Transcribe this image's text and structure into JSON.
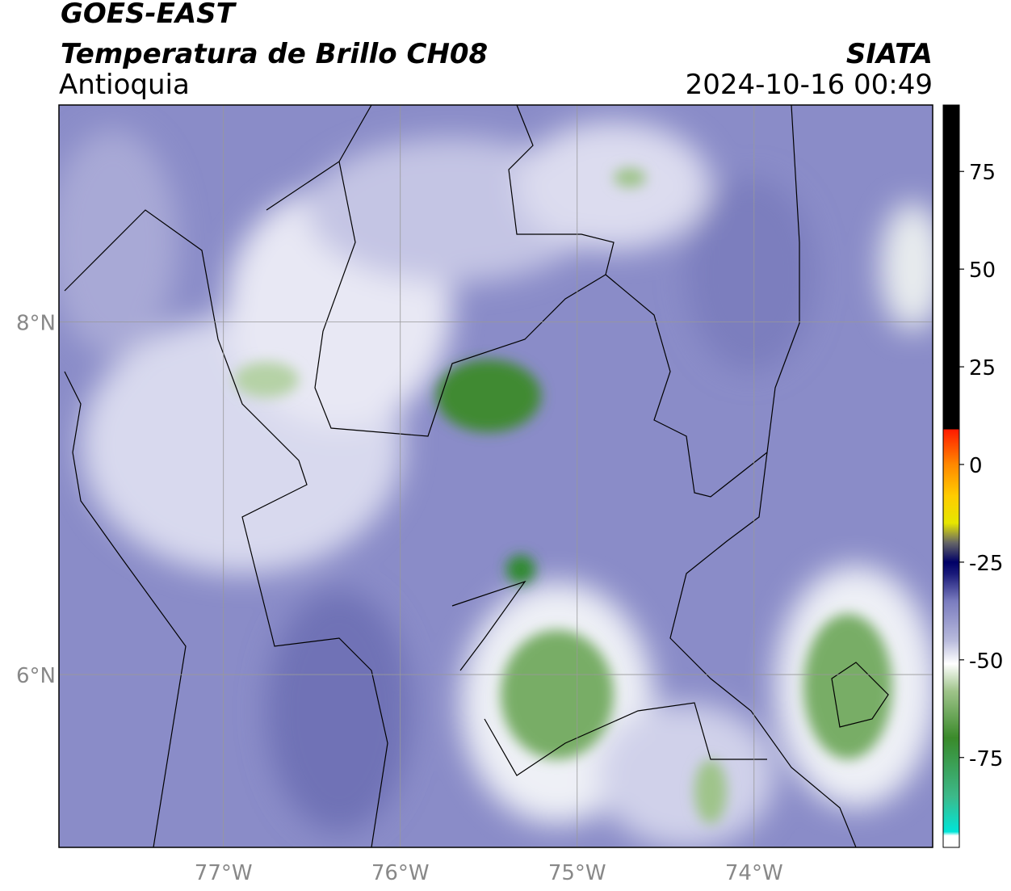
{
  "header": {
    "source": "GOES-EAST",
    "title": "Temperatura de Brillo CH08",
    "agency": "SIATA",
    "region": "Antioquia",
    "datetime": "2024-10-16 00:49"
  },
  "map": {
    "xlim": [
      -77.93,
      -72.99
    ],
    "ylim": [
      5.02,
      9.23
    ],
    "xticks": [
      {
        "value": -77,
        "label": "77°W"
      },
      {
        "value": -76,
        "label": "76°W"
      },
      {
        "value": -75,
        "label": "75°W"
      },
      {
        "value": -74,
        "label": "74°W"
      }
    ],
    "yticks": [
      {
        "value": 8,
        "label": "8°N"
      },
      {
        "value": 6,
        "label": "6°N"
      }
    ],
    "grid": true
  },
  "colorbar": {
    "lim": [
      -98,
      92
    ],
    "ticks": [
      75,
      50,
      25,
      0,
      -25,
      -50,
      -75
    ],
    "colormap": [
      {
        "value": -98,
        "color": "#ffffff"
      },
      {
        "value": -95,
        "color": "#ffffff"
      },
      {
        "value": -94,
        "color": "#00e5d8"
      },
      {
        "value": -85,
        "color": "#3cb98a"
      },
      {
        "value": -70,
        "color": "#3a8a2a"
      },
      {
        "value": -58,
        "color": "#9fc48a"
      },
      {
        "value": -51,
        "color": "#ffffff"
      },
      {
        "value": -45,
        "color": "#b8badc"
      },
      {
        "value": -35,
        "color": "#7a7cbf"
      },
      {
        "value": -28,
        "color": "#1a1a7a"
      },
      {
        "value": -25,
        "color": "#000066"
      },
      {
        "value": -20,
        "color": "#666666"
      },
      {
        "value": -15,
        "color": "#e6e600"
      },
      {
        "value": -8,
        "color": "#ffcc00"
      },
      {
        "value": 0,
        "color": "#ff8800"
      },
      {
        "value": 9,
        "color": "#ff1a00"
      },
      {
        "value": 9,
        "color": "#000000"
      },
      {
        "value": 92,
        "color": "#000000"
      }
    ]
  }
}
